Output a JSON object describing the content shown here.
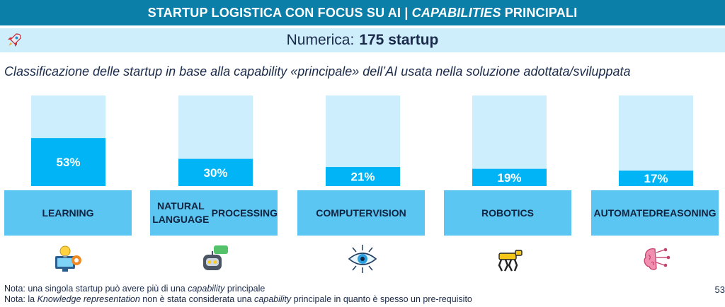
{
  "header": {
    "title_pre": "STARTUP LOGISTICA CON FOCUS SU AI |",
    "title_em": "CAPABILITIES",
    "title_post": "PRINCIPALI"
  },
  "count": {
    "label": "Numerica:",
    "value": "175 startup"
  },
  "subtitle": "Classificazione delle startup in base alla capability «principale» dell’AI usata nella soluzione adottata/sviluppata",
  "chart_data": {
    "type": "bar",
    "categories": [
      "LEARNING",
      "NATURAL LANGUAGE PROCESSING",
      "COMPUTER VISION",
      "ROBOTICS",
      "AUTOMATED REASONING"
    ],
    "category_lines": [
      [
        "LEARNING"
      ],
      [
        "NATURAL LANGUAGE",
        "PROCESSING"
      ],
      [
        "COMPUTER",
        "VISION"
      ],
      [
        "ROBOTICS"
      ],
      [
        "AUTOMATED",
        "REASONING"
      ]
    ],
    "values": [
      53,
      30,
      21,
      19,
      17
    ],
    "value_labels": [
      "53%",
      "30%",
      "21%",
      "19%",
      "17%"
    ],
    "ylim": [
      0,
      100
    ],
    "bar_color": "#00b4f5",
    "track_color": "#cdeffd",
    "category_box_color": "#5cc6f3",
    "icons": [
      "gear-bulb-screen-icon",
      "chatbot-icon",
      "eye-circuit-icon",
      "robot-dog-icon",
      "brain-circuit-icon"
    ]
  },
  "notes": {
    "note1_pre": "Nota: una singola startup può avere più di una ",
    "note1_em": "capability",
    "note1_post": " principale",
    "note2_pre": "Nota: la ",
    "note2_em1": "Knowledge representation",
    "note2_mid": " non è stata considerata una ",
    "note2_em2": "capability",
    "note2_post": " principale in quanto è spesso un pre-requisito"
  },
  "page_number": "53"
}
